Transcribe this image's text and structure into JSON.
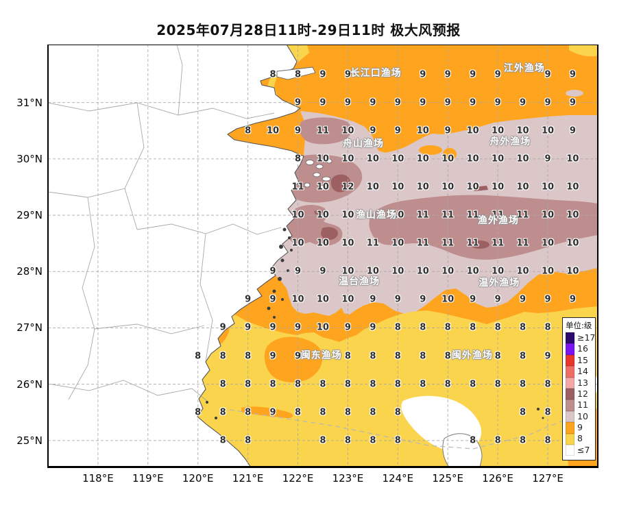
{
  "title": "2025年07月28日11时-29日11时 极大风预报",
  "axes": {
    "x_ticks": [
      {
        "label": "118°E",
        "lon": 118
      },
      {
        "label": "119°E",
        "lon": 119
      },
      {
        "label": "120°E",
        "lon": 120
      },
      {
        "label": "121°E",
        "lon": 121
      },
      {
        "label": "122°E",
        "lon": 122
      },
      {
        "label": "123°E",
        "lon": 123
      },
      {
        "label": "124°E",
        "lon": 124
      },
      {
        "label": "125°E",
        "lon": 125
      },
      {
        "label": "126°E",
        "lon": 126
      },
      {
        "label": "127°E",
        "lon": 127
      }
    ],
    "y_ticks": [
      {
        "label": "31°N",
        "lat": 31
      },
      {
        "label": "30°N",
        "lat": 30
      },
      {
        "label": "29°N",
        "lat": 29
      },
      {
        "label": "28°N",
        "lat": 28
      },
      {
        "label": "27°N",
        "lat": 27
      },
      {
        "label": "26°N",
        "lat": 26
      },
      {
        "label": "25°N",
        "lat": 25
      }
    ]
  },
  "legend": {
    "title": "单位:级",
    "items": [
      {
        "label": "≥17",
        "color": "#2D0B6E"
      },
      {
        "label": "16",
        "color": "#7A14F0"
      },
      {
        "label": "15",
        "color": "#E93628"
      },
      {
        "label": "14",
        "color": "#EE6E66"
      },
      {
        "label": "13",
        "color": "#F3A8A6"
      },
      {
        "label": "12",
        "color": "#9C6062"
      },
      {
        "label": "11",
        "color": "#BE8E8F"
      },
      {
        "label": "10",
        "color": "#DCC7C8"
      },
      {
        "label": "9",
        "color": "#FFA41E"
      },
      {
        "label": "8",
        "color": "#FBD44D"
      },
      {
        "label": "≤7",
        "color": "#FFFFFF"
      }
    ]
  },
  "fishing_grounds": [
    {
      "name": "长江口渔场",
      "lon": 123.56,
      "lat": 31.52
    },
    {
      "name": "江外渔场",
      "lon": 126.53,
      "lat": 31.6
    },
    {
      "name": "舟山渔场",
      "lon": 123.31,
      "lat": 30.27
    },
    {
      "name": "舟外渔场",
      "lon": 126.25,
      "lat": 30.3
    },
    {
      "name": "渔山渔场",
      "lon": 123.57,
      "lat": 29.0
    },
    {
      "name": "渔外渔场",
      "lon": 126.01,
      "lat": 28.9
    },
    {
      "name": "温台渔场",
      "lon": 123.23,
      "lat": 27.82
    },
    {
      "name": "温外渔场",
      "lon": 126.03,
      "lat": 27.8
    },
    {
      "name": "闽东渔场",
      "lon": 122.47,
      "lat": 26.51
    },
    {
      "name": "闽外渔场",
      "lon": 125.49,
      "lat": 26.51
    }
  ],
  "chart_data": {
    "type": "heatmap",
    "title": "2025年07月28日11时-29日11时 极大风预报",
    "unit": "级",
    "lon_range": [
      117,
      128
    ],
    "lat_range": [
      24.5,
      32.03
    ],
    "grid_note": "wind level (Beaufort) at 0.5-degree points; value plotted at [lon, level]",
    "grid": [
      {
        "lat": 31.5,
        "points": [
          [
            121.5,
            8
          ],
          [
            122,
            8
          ],
          [
            122.5,
            9
          ],
          [
            123,
            9
          ],
          [
            124.5,
            9
          ],
          [
            125,
            9
          ],
          [
            125.5,
            9
          ],
          [
            126,
            9
          ],
          [
            127,
            9
          ],
          [
            127.5,
            9
          ]
        ]
      },
      {
        "lat": 31.0,
        "points": [
          [
            122,
            9
          ],
          [
            122.5,
            9
          ],
          [
            123,
            9
          ],
          [
            123.5,
            9
          ],
          [
            124,
            9
          ],
          [
            124.5,
            9
          ],
          [
            125,
            9
          ],
          [
            125.5,
            9
          ],
          [
            126,
            9
          ],
          [
            126.5,
            9
          ],
          [
            127,
            9
          ],
          [
            127.5,
            9
          ]
        ]
      },
      {
        "lat": 30.5,
        "points": [
          [
            121,
            8
          ],
          [
            121.5,
            10
          ],
          [
            122,
            9
          ],
          [
            122.5,
            11
          ],
          [
            123,
            10
          ],
          [
            123.5,
            9
          ],
          [
            124,
            9
          ],
          [
            124.5,
            10
          ],
          [
            125,
            9
          ],
          [
            125.5,
            10
          ],
          [
            126,
            10
          ],
          [
            126.5,
            10
          ],
          [
            127,
            10
          ],
          [
            127.5,
            9
          ]
        ]
      },
      {
        "lat": 30.0,
        "points": [
          [
            122,
            8
          ],
          [
            122.5,
            10
          ],
          [
            123,
            10
          ],
          [
            123.5,
            10
          ],
          [
            124,
            10
          ],
          [
            124.5,
            10
          ],
          [
            125,
            10
          ],
          [
            125.5,
            10
          ],
          [
            126,
            10
          ],
          [
            126.5,
            10
          ],
          [
            127,
            9
          ],
          [
            127.5,
            10
          ]
        ]
      },
      {
        "lat": 29.5,
        "points": [
          [
            122,
            11
          ],
          [
            122.5,
            10
          ],
          [
            123,
            12
          ],
          [
            123.5,
            10
          ],
          [
            124,
            10
          ],
          [
            124.5,
            10
          ],
          [
            125,
            10
          ],
          [
            125.5,
            10
          ],
          [
            126,
            10
          ],
          [
            126.5,
            10
          ],
          [
            127,
            10
          ],
          [
            127.5,
            10
          ]
        ]
      },
      {
        "lat": 29.0,
        "points": [
          [
            122,
            10
          ],
          [
            122.5,
            10
          ],
          [
            123,
            10
          ],
          [
            124,
            10
          ],
          [
            124.5,
            11
          ],
          [
            125,
            11
          ],
          [
            125.5,
            11
          ],
          [
            126,
            11
          ],
          [
            126.5,
            11
          ],
          [
            127,
            10
          ],
          [
            127.5,
            10
          ]
        ]
      },
      {
        "lat": 28.5,
        "points": [
          [
            122,
            10
          ],
          [
            122.5,
            10
          ],
          [
            123,
            10
          ],
          [
            123.5,
            11
          ],
          [
            124,
            10
          ],
          [
            124.5,
            11
          ],
          [
            125,
            11
          ],
          [
            125.5,
            11
          ],
          [
            126,
            11
          ],
          [
            126.5,
            11
          ],
          [
            127,
            10
          ],
          [
            127.5,
            10
          ]
        ]
      },
      {
        "lat": 28.0,
        "points": [
          [
            121.5,
            9
          ],
          [
            122,
            9
          ],
          [
            122.5,
            9
          ],
          [
            123,
            10
          ],
          [
            123.5,
            10
          ],
          [
            124,
            10
          ],
          [
            124.5,
            10
          ],
          [
            125,
            10
          ],
          [
            125.5,
            10
          ],
          [
            126,
            10
          ],
          [
            126.5,
            10
          ],
          [
            127,
            10
          ],
          [
            127.5,
            10
          ]
        ]
      },
      {
        "lat": 27.5,
        "points": [
          [
            121,
            9
          ],
          [
            121.5,
            9
          ],
          [
            122,
            10
          ],
          [
            122.5,
            10
          ],
          [
            123,
            10
          ],
          [
            123.5,
            9
          ],
          [
            124,
            9
          ],
          [
            124.5,
            9
          ],
          [
            125,
            10
          ],
          [
            125.5,
            9
          ],
          [
            126,
            9
          ],
          [
            126.5,
            9
          ],
          [
            127,
            9
          ],
          [
            127.5,
            9
          ]
        ]
      },
      {
        "lat": 27.0,
        "points": [
          [
            120.5,
            9
          ],
          [
            121,
            9
          ],
          [
            121.5,
            9
          ],
          [
            122,
            9
          ],
          [
            122.5,
            10
          ],
          [
            123,
            9
          ],
          [
            123.5,
            9
          ],
          [
            124,
            8
          ],
          [
            124.5,
            8
          ],
          [
            125,
            8
          ],
          [
            125.5,
            8
          ],
          [
            126,
            8
          ],
          [
            126.5,
            8
          ],
          [
            127,
            8
          ]
        ]
      },
      {
        "lat": 26.5,
        "points": [
          [
            120,
            8
          ],
          [
            120.5,
            8
          ],
          [
            121,
            8
          ],
          [
            121.5,
            9
          ],
          [
            122,
            9
          ],
          [
            123,
            8
          ],
          [
            123.5,
            8
          ],
          [
            124,
            8
          ],
          [
            124.5,
            8
          ],
          [
            125,
            8
          ],
          [
            126,
            8
          ],
          [
            126.5,
            8
          ],
          [
            127,
            9
          ]
        ]
      },
      {
        "lat": 26.0,
        "points": [
          [
            120.5,
            8
          ],
          [
            121,
            8
          ],
          [
            121.5,
            8
          ],
          [
            122,
            8
          ],
          [
            122.5,
            8
          ],
          [
            123,
            8
          ],
          [
            123.5,
            8
          ],
          [
            124,
            8
          ],
          [
            124.5,
            8
          ],
          [
            125,
            8
          ],
          [
            125.5,
            8
          ],
          [
            126,
            8
          ],
          [
            126.5,
            8
          ],
          [
            127,
            8
          ]
        ]
      },
      {
        "lat": 25.5,
        "points": [
          [
            120,
            8
          ],
          [
            120.5,
            8
          ],
          [
            121,
            8
          ],
          [
            121.5,
            9
          ],
          [
            122,
            8
          ],
          [
            122.5,
            8
          ],
          [
            123,
            8
          ],
          [
            123.5,
            8
          ],
          [
            124,
            8
          ],
          [
            126.5,
            8
          ],
          [
            127,
            8
          ]
        ]
      },
      {
        "lat": 25.0,
        "points": [
          [
            120.5,
            8
          ],
          [
            121,
            8
          ],
          [
            122.5,
            8
          ],
          [
            123,
            8
          ],
          [
            123.5,
            8
          ],
          [
            124,
            8
          ],
          [
            125.5,
            8
          ],
          [
            126,
            8
          ],
          [
            126.5,
            8
          ],
          [
            127,
            8
          ]
        ]
      }
    ]
  }
}
